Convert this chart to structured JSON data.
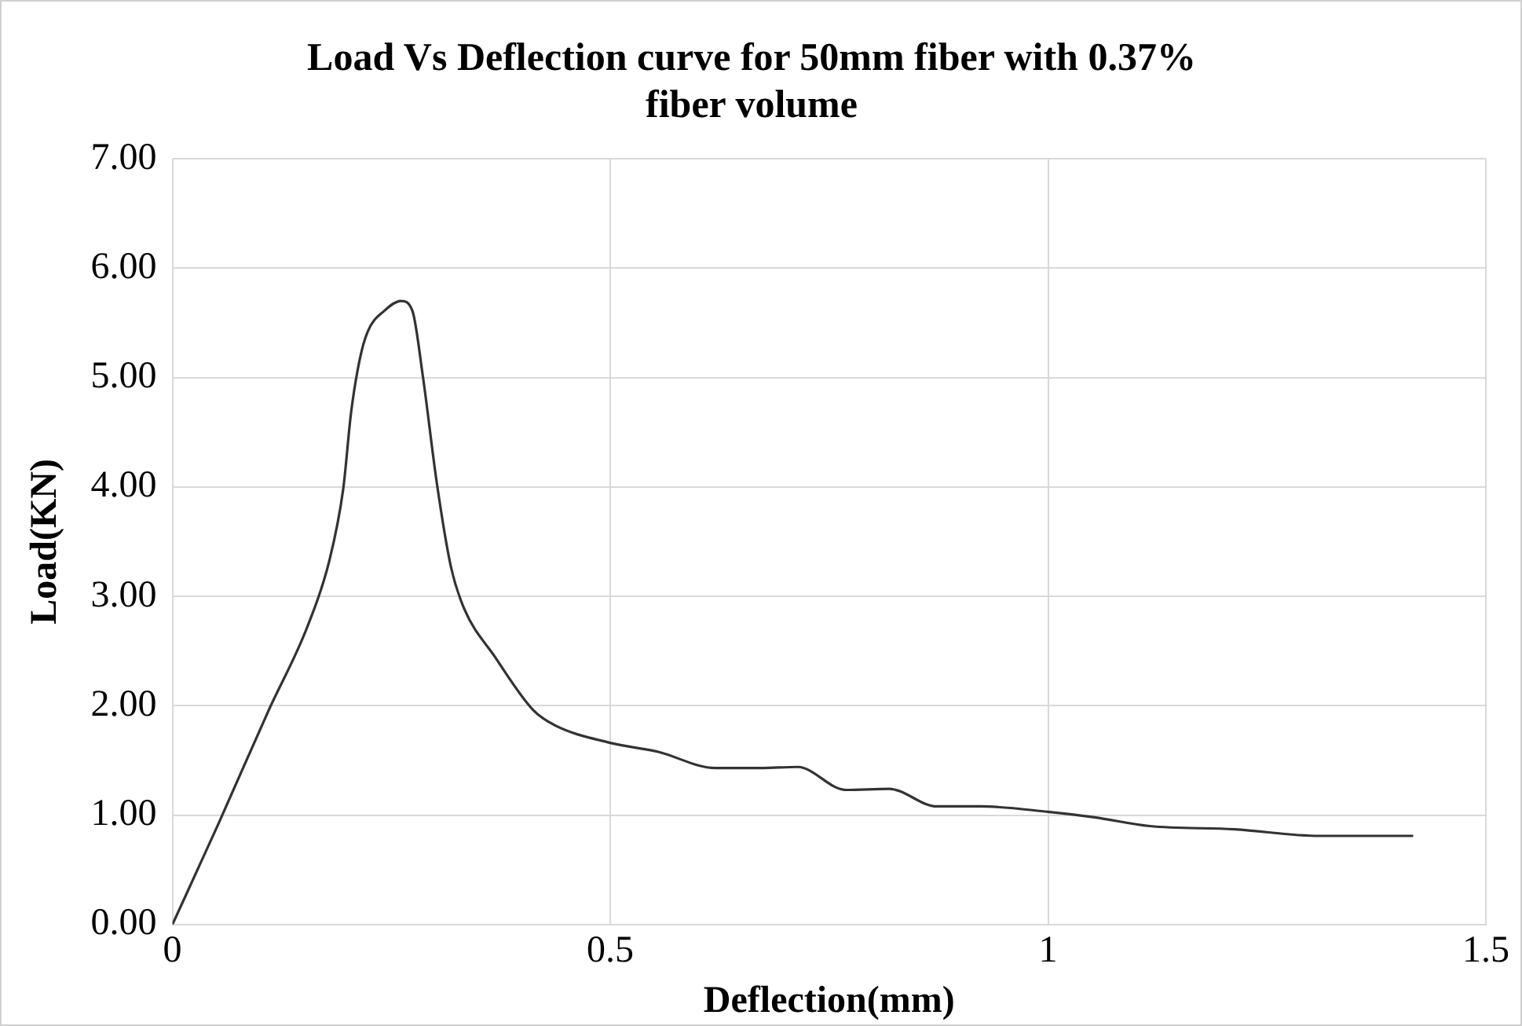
{
  "chart_data": {
    "type": "line",
    "title": "Load Vs Deflection curve for 50mm fiber with 0.37% fiber volume",
    "xlabel": "Deflection(mm)",
    "ylabel": "Load(KN)",
    "series": [
      {
        "color": "#333333",
        "x": [
          0,
          0.053,
          0.11,
          0.154,
          0.179,
          0.195,
          0.204,
          0.214,
          0.223,
          0.242,
          0.261,
          0.274,
          0.286,
          0.302,
          0.318,
          0.333,
          0.368,
          0.412,
          0.437,
          0.5,
          0.554,
          0.62,
          0.672,
          0.714,
          0.769,
          0.818,
          0.873,
          0.922,
          1.0,
          1.053,
          1.116,
          1.213,
          1.31,
          1.417
        ],
        "values": [
          0,
          0.93,
          1.96,
          2.72,
          3.32,
          3.98,
          4.68,
          5.17,
          5.42,
          5.61,
          5.7,
          5.61,
          5.01,
          4.03,
          3.27,
          2.89,
          2.45,
          1.96,
          1.82,
          1.66,
          1.58,
          1.43,
          1.43,
          1.44,
          1.23,
          1.24,
          1.08,
          1.08,
          1.03,
          0.98,
          0.9,
          0.87,
          0.81,
          0.81
        ]
      }
    ],
    "xlim": [
      0,
      1.5
    ],
    "xticks": [
      0,
      0.5,
      1,
      1.5
    ],
    "ylim": [
      0,
      7
    ],
    "yticks": [
      {
        "value": 0,
        "label": "0.00"
      },
      {
        "value": 1,
        "label": "1.00"
      },
      {
        "value": 2,
        "label": "2.00"
      },
      {
        "value": 3,
        "label": "3.00"
      },
      {
        "value": 4,
        "label": "4.00"
      },
      {
        "value": 5,
        "label": "5.00"
      },
      {
        "value": 6,
        "label": "6.00"
      },
      {
        "value": 7,
        "label": "7.00"
      }
    ],
    "grid": true,
    "legend": false,
    "marker": "none",
    "line_style": "solid"
  }
}
